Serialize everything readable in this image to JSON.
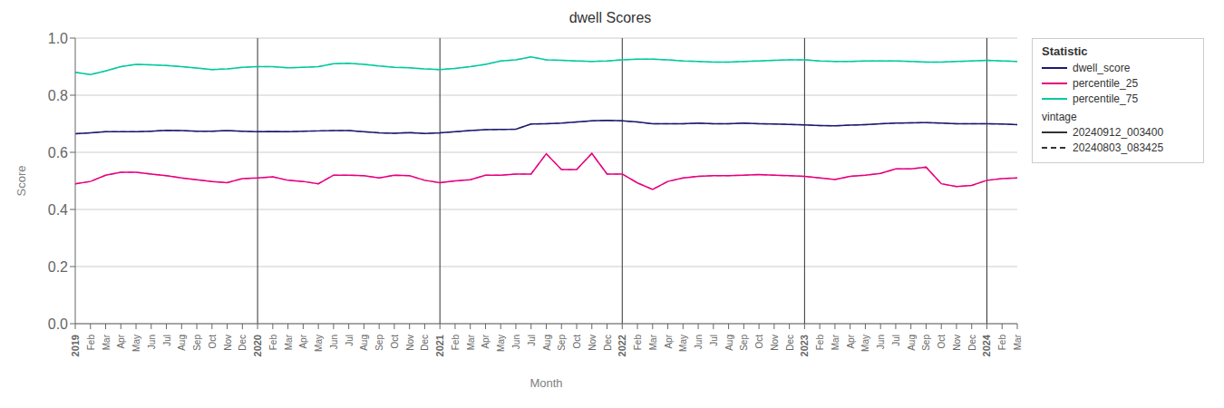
{
  "chart_data": {
    "type": "line",
    "title": "dwell Scores",
    "x_label": "Month",
    "y_label": "Score",
    "categories": [
      "2019",
      "Feb",
      "Mar",
      "Apr",
      "May",
      "Jun",
      "Jul",
      "Aug",
      "Sep",
      "Oct",
      "Nov",
      "Dec",
      "2020",
      "Feb",
      "Mar",
      "Apr",
      "May",
      "Jun",
      "Jul",
      "Aug",
      "Sep",
      "Oct",
      "Nov",
      "Dec",
      "2021",
      "Feb",
      "Mar",
      "Apr",
      "May",
      "Jun",
      "Jul",
      "Aug",
      "Sep",
      "Oct",
      "Nov",
      "Dec",
      "2022",
      "Feb",
      "Mar",
      "Apr",
      "May",
      "Jun",
      "Jul",
      "Aug",
      "Sep",
      "Oct",
      "Nov",
      "Dec",
      "2023",
      "Feb",
      "Mar",
      "Apr",
      "May",
      "Jun",
      "Jul",
      "Aug",
      "Sep",
      "Oct",
      "Nov",
      "Dec",
      "2024",
      "Feb",
      "Mar"
    ],
    "ylim": [
      0,
      1
    ],
    "yticks": [
      {
        "value": 0,
        "label": "0.0"
      },
      0.2,
      0.4,
      0.6,
      0.8,
      {
        "value": 1,
        "label": "1.0"
      }
    ],
    "grid": true,
    "legend": "right",
    "legend_title": "Statistic",
    "vintage_title": "vintage",
    "vlines": [
      "2020",
      "2021",
      "2022",
      "2023",
      "2024"
    ],
    "series": [
      {
        "name": "dwell_score",
        "vintage": "20240803_083425",
        "color": "#1a1a6e",
        "line_style": "dashed",
        "values": [
          0.665,
          0.668,
          0.672,
          0.672,
          0.672,
          0.674,
          0.677,
          0.676,
          0.674,
          0.674,
          0.676,
          0.674,
          0.672,
          0.673,
          0.672,
          0.674,
          0.675,
          0.676,
          0.676,
          0.672,
          0.668,
          0.667,
          0.669,
          0.666,
          0.668,
          0.672,
          0.676,
          0.679,
          0.68,
          0.681,
          0.699,
          0.7,
          0.702,
          0.706,
          0.71,
          0.712,
          0.71,
          0.706,
          0.7,
          0.7,
          0.7,
          0.702,
          0.7,
          0.7,
          0.702,
          0.7,
          0.699,
          0.698,
          0.696,
          0.694,
          0.693,
          0.695,
          0.697,
          0.7,
          0.702,
          0.703,
          0.704,
          0.702,
          0.7,
          0.7,
          0.7,
          0.699,
          0.697
        ]
      },
      {
        "name": "percentile_25",
        "vintage": "20240803_083425",
        "color": "#e6007e",
        "line_style": "dashed",
        "values": [
          0.49,
          0.498,
          0.52,
          0.53,
          0.53,
          0.524,
          0.518,
          0.51,
          0.504,
          0.498,
          0.494,
          0.508,
          0.51,
          0.514,
          0.502,
          0.498,
          0.49,
          0.52,
          0.52,
          0.518,
          0.51,
          0.52,
          0.518,
          0.502,
          0.494,
          0.5,
          0.504,
          0.52,
          0.52,
          0.524,
          0.524,
          0.595,
          0.54,
          0.54,
          0.596,
          0.524,
          0.524,
          0.493,
          0.47,
          0.498,
          0.51,
          0.516,
          0.518,
          0.518,
          0.52,
          0.522,
          0.52,
          0.518,
          0.516,
          0.51,
          0.505,
          0.516,
          0.52,
          0.526,
          0.542,
          0.542,
          0.548,
          0.49,
          0.48,
          0.484,
          0.502,
          0.508,
          0.51
        ]
      },
      {
        "name": "percentile_75",
        "vintage": "20240803_083425",
        "color": "#00c9a0",
        "line_style": "dashed",
        "values": [
          0.88,
          0.872,
          0.885,
          0.9,
          0.908,
          0.906,
          0.904,
          0.9,
          0.895,
          0.89,
          0.892,
          0.898,
          0.9,
          0.9,
          0.896,
          0.898,
          0.9,
          0.91,
          0.912,
          0.908,
          0.902,
          0.898,
          0.896,
          0.892,
          0.89,
          0.894,
          0.9,
          0.908,
          0.92,
          0.924,
          0.934,
          0.924,
          0.922,
          0.92,
          0.918,
          0.92,
          0.924,
          0.926,
          0.926,
          0.924,
          0.92,
          0.918,
          0.916,
          0.916,
          0.918,
          0.92,
          0.922,
          0.924,
          0.924,
          0.92,
          0.918,
          0.918,
          0.92,
          0.92,
          0.92,
          0.918,
          0.916,
          0.916,
          0.918,
          0.92,
          0.922,
          0.92,
          0.918
        ]
      },
      {
        "name": "dwell_score",
        "vintage": "20240912_003400",
        "color": "#1a1a6e",
        "line_style": "solid",
        "values": [
          0.665,
          0.668,
          0.672,
          0.672,
          0.672,
          0.674,
          0.677,
          0.676,
          0.674,
          0.674,
          0.676,
          0.674,
          0.672,
          0.673,
          0.672,
          0.674,
          0.675,
          0.676,
          0.676,
          0.672,
          0.668,
          0.667,
          0.669,
          0.666,
          0.668,
          0.672,
          0.676,
          0.679,
          0.68,
          0.681,
          0.699,
          0.7,
          0.702,
          0.706,
          0.71,
          0.712,
          0.71,
          0.706,
          0.7,
          0.7,
          0.7,
          0.702,
          0.7,
          0.7,
          0.702,
          0.7,
          0.699,
          0.698,
          0.696,
          0.694,
          0.693,
          0.695,
          0.697,
          0.7,
          0.702,
          0.703,
          0.704,
          0.702,
          0.7,
          0.7,
          0.7,
          0.699,
          0.697
        ]
      },
      {
        "name": "percentile_25",
        "vintage": "20240912_003400",
        "color": "#e6007e",
        "line_style": "solid",
        "values": [
          0.49,
          0.498,
          0.52,
          0.53,
          0.53,
          0.524,
          0.518,
          0.51,
          0.504,
          0.498,
          0.494,
          0.508,
          0.51,
          0.514,
          0.502,
          0.498,
          0.49,
          0.52,
          0.52,
          0.518,
          0.51,
          0.52,
          0.518,
          0.502,
          0.494,
          0.5,
          0.504,
          0.52,
          0.52,
          0.524,
          0.524,
          0.595,
          0.54,
          0.54,
          0.596,
          0.524,
          0.524,
          0.493,
          0.47,
          0.498,
          0.51,
          0.516,
          0.518,
          0.518,
          0.52,
          0.522,
          0.52,
          0.518,
          0.516,
          0.51,
          0.505,
          0.516,
          0.52,
          0.526,
          0.542,
          0.542,
          0.548,
          0.49,
          0.48,
          0.484,
          0.502,
          0.508,
          0.51
        ]
      },
      {
        "name": "percentile_75",
        "vintage": "20240912_003400",
        "color": "#00c9a0",
        "line_style": "solid",
        "values": [
          0.88,
          0.872,
          0.885,
          0.9,
          0.908,
          0.906,
          0.904,
          0.9,
          0.895,
          0.89,
          0.892,
          0.898,
          0.9,
          0.9,
          0.896,
          0.898,
          0.9,
          0.91,
          0.912,
          0.908,
          0.902,
          0.898,
          0.896,
          0.892,
          0.89,
          0.894,
          0.9,
          0.908,
          0.92,
          0.924,
          0.934,
          0.924,
          0.922,
          0.92,
          0.918,
          0.92,
          0.924,
          0.926,
          0.926,
          0.924,
          0.92,
          0.918,
          0.916,
          0.916,
          0.918,
          0.92,
          0.922,
          0.924,
          0.924,
          0.92,
          0.918,
          0.918,
          0.92,
          0.92,
          0.92,
          0.918,
          0.916,
          0.916,
          0.918,
          0.92,
          0.922,
          0.92,
          0.918
        ]
      }
    ]
  }
}
